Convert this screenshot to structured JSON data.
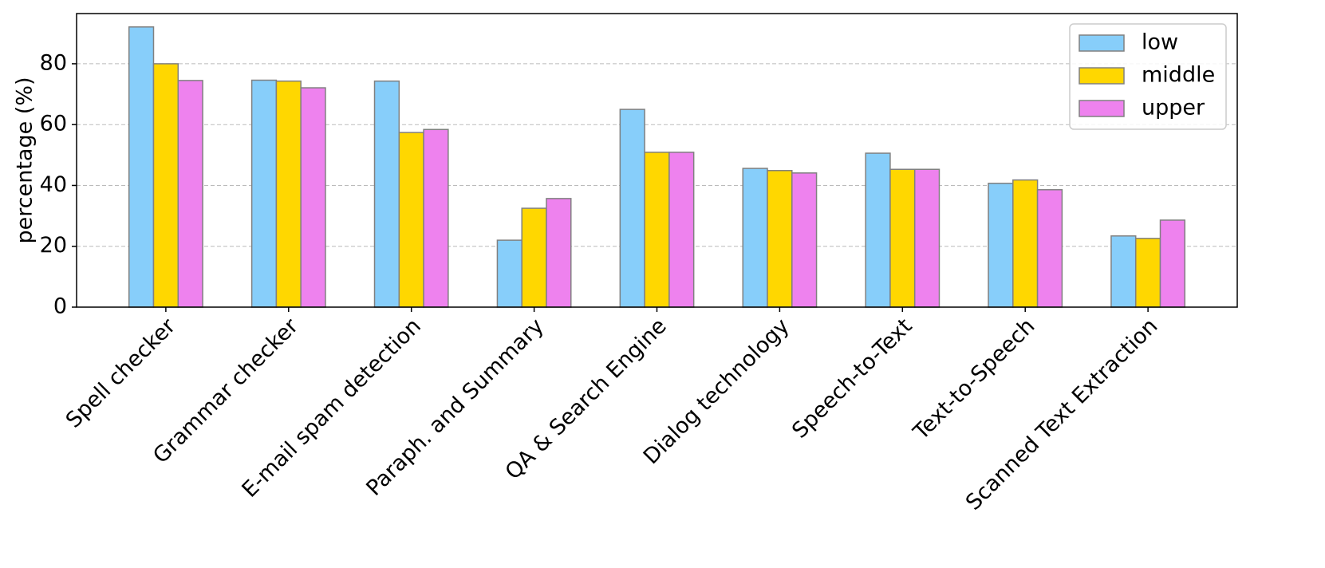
{
  "chart_data": {
    "type": "bar",
    "y_label": "percentage (%)",
    "categories": [
      "Spell checker",
      "Grammar checker",
      "E-mail spam detection",
      "Paraph. and Summary",
      "QA & Search Engine",
      "Dialog technology",
      "Speech-to-Text",
      "Text-to-Speech",
      "Scanned Text Extraction"
    ],
    "series": [
      {
        "name": "low",
        "color": "#87cefa",
        "values": [
          92.1,
          74.6,
          74.3,
          22.0,
          65.0,
          45.6,
          50.6,
          40.7,
          23.4
        ]
      },
      {
        "name": "middle",
        "color": "#ffd700",
        "values": [
          80.0,
          74.3,
          57.4,
          32.5,
          50.9,
          44.9,
          45.3,
          41.8,
          22.6
        ]
      },
      {
        "name": "upper",
        "color": "#ee82ee",
        "values": [
          74.5,
          72.1,
          58.4,
          35.7,
          50.9,
          44.1,
          45.3,
          38.6,
          28.6
        ]
      }
    ],
    "ylim": [
      0,
      96.5
    ],
    "yticks": [
      0,
      20,
      40,
      60,
      80
    ],
    "grid": true,
    "legend": "upper right"
  }
}
